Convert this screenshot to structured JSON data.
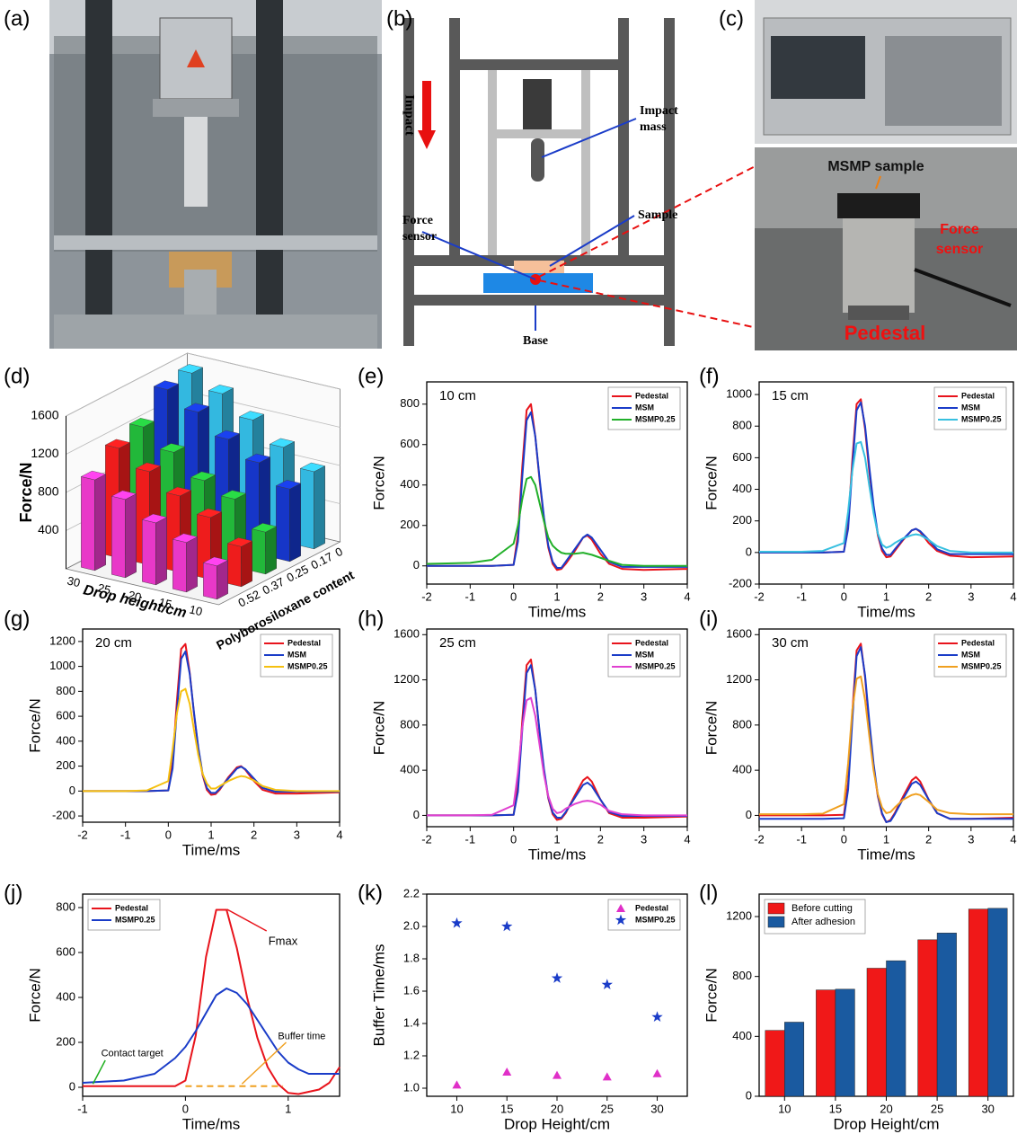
{
  "figure": {
    "panel_labels": [
      "(a)",
      "(b)",
      "(c)",
      "(d)",
      "(e)",
      "(f)",
      "(g)",
      "(h)",
      "(i)",
      "(j)",
      "(k)",
      "(l)"
    ],
    "schematic": {
      "impact": "Impact",
      "impact_mass": [
        "Impact",
        "mass"
      ],
      "force_sensor": [
        "Force",
        "sensor"
      ],
      "sample": "Sample",
      "base": "Base"
    },
    "photo": {
      "msmp_sample": "MSMP sample",
      "force_sensor": [
        "Force",
        "sensor"
      ],
      "pedestal": "Pedestal"
    }
  },
  "chart_data": [
    {
      "type": "bar3d",
      "z_label": "Force/N",
      "x_label": "Drop height/cm",
      "y_label": "Polyborosiloxane content",
      "categories": [
        "10",
        "15",
        "20",
        "25",
        "30"
      ],
      "depth_categories": [
        "0",
        "0.17",
        "0.25",
        "0.37",
        "0.52"
      ],
      "zlim": [
        0,
        1600
      ],
      "zticks": [
        400,
        800,
        1200,
        1600
      ],
      "series": [
        {
          "color": "#33b8e0",
          "values": [
            810,
            990,
            1200,
            1400,
            1540
          ]
        },
        {
          "color": "#1636c8",
          "values": [
            760,
            960,
            1130,
            1340,
            1500
          ]
        },
        {
          "color": "#22b83a",
          "values": [
            440,
            710,
            830,
            1050,
            1240
          ]
        },
        {
          "color": "#ee1c1c",
          "values": [
            420,
            650,
            800,
            980,
            1150
          ]
        },
        {
          "color": "#e838c8",
          "values": [
            350,
            520,
            650,
            820,
            950
          ]
        }
      ]
    },
    {
      "type": "line",
      "annotation": "10 cm",
      "x_label": "Time/ms",
      "y_label": "Force/N",
      "xlim": [
        -2,
        4
      ],
      "xticks": [
        -2,
        -1,
        0,
        1,
        2,
        3,
        4
      ],
      "ylim": [
        -90,
        910
      ],
      "yticks": [
        0,
        200,
        400,
        600,
        800
      ],
      "legend": "upper right",
      "x": [
        -2,
        -1,
        -0.5,
        0,
        0.1,
        0.2,
        0.3,
        0.4,
        0.5,
        0.6,
        0.7,
        0.8,
        0.9,
        1,
        1.1,
        1.2,
        1.4,
        1.6,
        1.7,
        1.8,
        2,
        2.2,
        2.5,
        3,
        4
      ],
      "series": [
        {
          "name": "Pedestal",
          "color": "#e8141c",
          "values": [
            0,
            0,
            0,
            5,
            155,
            490,
            770,
            800,
            640,
            420,
            230,
            90,
            10,
            -20,
            -15,
            10,
            70,
            140,
            150,
            130,
            60,
            10,
            -15,
            -20,
            -15
          ]
        },
        {
          "name": "MSM",
          "color": "#1a3cc8",
          "values": [
            0,
            0,
            0,
            5,
            120,
            440,
            720,
            760,
            640,
            430,
            240,
            100,
            20,
            -10,
            -10,
            20,
            80,
            140,
            155,
            140,
            80,
            20,
            -5,
            -5,
            -5
          ]
        },
        {
          "name": "MSMP0.25",
          "color": "#22b02a",
          "values": [
            10,
            15,
            30,
            110,
            200,
            330,
            430,
            440,
            400,
            310,
            220,
            140,
            100,
            80,
            65,
            60,
            60,
            65,
            60,
            55,
            40,
            25,
            5,
            0,
            0
          ]
        }
      ]
    },
    {
      "type": "line",
      "annotation": "15 cm",
      "x_label": "Time/ms",
      "y_label": "Force/N",
      "xlim": [
        -2,
        4
      ],
      "xticks": [
        -2,
        -1,
        0,
        1,
        2,
        3,
        4
      ],
      "ylim": [
        -200,
        1080
      ],
      "yticks": [
        -200,
        0,
        200,
        400,
        600,
        800,
        1000
      ],
      "legend": "upper right",
      "x": [
        -2,
        -1,
        -0.5,
        0,
        0.1,
        0.2,
        0.3,
        0.4,
        0.5,
        0.6,
        0.7,
        0.8,
        0.9,
        1,
        1.1,
        1.2,
        1.4,
        1.6,
        1.7,
        1.8,
        2,
        2.2,
        2.5,
        3,
        4
      ],
      "series": [
        {
          "name": "Pedestal",
          "color": "#e8141c",
          "values": [
            0,
            0,
            0,
            5,
            190,
            590,
            940,
            970,
            780,
            510,
            280,
            110,
            10,
            -30,
            -25,
            10,
            80,
            140,
            150,
            130,
            60,
            10,
            -20,
            -30,
            -25
          ]
        },
        {
          "name": "MSM",
          "color": "#1a3cc8",
          "values": [
            0,
            0,
            0,
            5,
            150,
            540,
            900,
            950,
            800,
            540,
            300,
            120,
            25,
            -15,
            -15,
            20,
            85,
            140,
            150,
            135,
            80,
            20,
            -10,
            -10,
            -10
          ]
        },
        {
          "name": "MSMP0.25",
          "color": "#38c0e0",
          "values": [
            5,
            5,
            10,
            60,
            260,
            520,
            690,
            700,
            600,
            420,
            250,
            120,
            50,
            30,
            40,
            60,
            90,
            110,
            115,
            110,
            80,
            40,
            10,
            0,
            0
          ]
        }
      ]
    },
    {
      "type": "line",
      "annotation": "20 cm",
      "x_label": "Time/ms",
      "y_label": "Force/N",
      "xlim": [
        -2,
        4
      ],
      "xticks": [
        -2,
        -1,
        0,
        1,
        2,
        3,
        4
      ],
      "ylim": [
        -250,
        1300
      ],
      "yticks": [
        -200,
        0,
        200,
        400,
        600,
        800,
        1000,
        1200
      ],
      "legend": "upper right",
      "x": [
        -2,
        -1,
        -0.5,
        0,
        0.1,
        0.2,
        0.3,
        0.4,
        0.5,
        0.6,
        0.7,
        0.8,
        0.9,
        1,
        1.1,
        1.2,
        1.4,
        1.6,
        1.7,
        1.8,
        2,
        2.2,
        2.5,
        3,
        4
      ],
      "series": [
        {
          "name": "Pedestal",
          "color": "#e8141c",
          "values": [
            0,
            0,
            0,
            5,
            230,
            720,
            1140,
            1180,
            950,
            620,
            340,
            130,
            10,
            -30,
            -25,
            10,
            110,
            190,
            200,
            170,
            80,
            10,
            -20,
            -20,
            -10
          ]
        },
        {
          "name": "MSM",
          "color": "#1a3cc8",
          "values": [
            0,
            0,
            0,
            5,
            180,
            640,
            1060,
            1120,
            940,
            630,
            350,
            140,
            25,
            -15,
            -15,
            20,
            100,
            180,
            195,
            175,
            100,
            25,
            -5,
            -5,
            -5
          ]
        },
        {
          "name": "MSMP0.25",
          "color": "#f5c010",
          "values": [
            0,
            0,
            5,
            80,
            330,
            620,
            800,
            820,
            700,
            490,
            290,
            140,
            60,
            20,
            20,
            40,
            80,
            110,
            120,
            115,
            85,
            40,
            10,
            0,
            0
          ]
        }
      ]
    },
    {
      "type": "line",
      "annotation": "25 cm",
      "x_label": "Time/ms",
      "y_label": "Force/N",
      "xlim": [
        -2,
        4
      ],
      "xticks": [
        -2,
        -1,
        0,
        1,
        2,
        3,
        4
      ],
      "ylim": [
        -100,
        1650
      ],
      "yticks": [
        0,
        400,
        800,
        1200,
        1600
      ],
      "legend": "upper right",
      "x": [
        -2,
        -1,
        -0.5,
        0,
        0.1,
        0.2,
        0.3,
        0.4,
        0.5,
        0.6,
        0.7,
        0.8,
        0.9,
        1,
        1.1,
        1.2,
        1.4,
        1.6,
        1.7,
        1.8,
        2,
        2.2,
        2.5,
        3,
        4
      ],
      "series": [
        {
          "name": "Pedestal",
          "color": "#e8141c",
          "values": [
            0,
            0,
            0,
            5,
            270,
            840,
            1330,
            1380,
            1110,
            720,
            390,
            150,
            10,
            -40,
            -30,
            20,
            170,
            310,
            340,
            300,
            140,
            20,
            -20,
            -20,
            -10
          ]
        },
        {
          "name": "MSM",
          "color": "#1a3cc8",
          "values": [
            0,
            0,
            0,
            5,
            210,
            760,
            1260,
            1330,
            1110,
            740,
            410,
            160,
            25,
            -20,
            -20,
            30,
            150,
            270,
            290,
            260,
            140,
            30,
            -5,
            -5,
            -5
          ]
        },
        {
          "name": "MSMP0.25",
          "color": "#e040d0",
          "values": [
            0,
            0,
            5,
            90,
            380,
            780,
            1020,
            1040,
            880,
            620,
            360,
            170,
            60,
            20,
            30,
            60,
            100,
            125,
            130,
            125,
            95,
            40,
            10,
            0,
            0
          ]
        }
      ]
    },
    {
      "type": "line",
      "annotation": "30 cm",
      "x_label": "Time/ms",
      "y_label": "Force/N",
      "xlim": [
        -2,
        4
      ],
      "xticks": [
        -2,
        -1,
        0,
        1,
        2,
        3,
        4
      ],
      "ylim": [
        -100,
        1650
      ],
      "yticks": [
        0,
        400,
        800,
        1200,
        1600
      ],
      "legend": "upper right",
      "x": [
        -2,
        -1,
        -0.5,
        0,
        0.1,
        0.2,
        0.3,
        0.4,
        0.5,
        0.6,
        0.7,
        0.8,
        0.9,
        1,
        1.1,
        1.2,
        1.4,
        1.6,
        1.7,
        1.8,
        2,
        2.2,
        2.5,
        3,
        4
      ],
      "series": [
        {
          "name": "Pedestal",
          "color": "#e8141c",
          "values": [
            0,
            0,
            0,
            5,
            290,
            920,
            1460,
            1520,
            1220,
            790,
            430,
            170,
            10,
            -60,
            -40,
            20,
            170,
            310,
            340,
            300,
            140,
            20,
            -30,
            -30,
            -20
          ]
        },
        {
          "name": "MSM",
          "color": "#1a3cc8",
          "values": [
            -30,
            -30,
            -30,
            -25,
            230,
            850,
            1410,
            1490,
            1240,
            830,
            460,
            180,
            20,
            -60,
            -50,
            10,
            150,
            280,
            300,
            270,
            140,
            20,
            -30,
            -30,
            -30
          ]
        },
        {
          "name": "MSMP0.25",
          "color": "#f0a020",
          "values": [
            10,
            10,
            15,
            100,
            460,
            940,
            1210,
            1230,
            1020,
            700,
            400,
            190,
            70,
            20,
            30,
            70,
            140,
            180,
            190,
            180,
            120,
            50,
            20,
            10,
            10
          ]
        }
      ]
    },
    {
      "type": "line",
      "x_label": "Time/ms",
      "y_label": "Force/N",
      "xlim": [
        -1,
        1.5
      ],
      "xticks": [
        -1,
        0,
        1
      ],
      "ylim": [
        -40,
        860
      ],
      "yticks": [
        0,
        200,
        400,
        600,
        800
      ],
      "legend": "upper left",
      "annotations": [
        "Fmax",
        "Contact target",
        "Buffer time"
      ],
      "x": [
        -1,
        -0.6,
        -0.3,
        -0.1,
        0,
        0.1,
        0.2,
        0.3,
        0.4,
        0.5,
        0.6,
        0.7,
        0.8,
        0.9,
        1,
        1.1,
        1.2,
        1.3,
        1.4,
        1.5
      ],
      "series": [
        {
          "name": "Pedestal",
          "color": "#e8141c",
          "values": [
            5,
            5,
            5,
            5,
            30,
            230,
            580,
            790,
            790,
            620,
            400,
            220,
            90,
            15,
            -25,
            -30,
            -20,
            -10,
            20,
            90
          ]
        },
        {
          "name": "MSMP0.25",
          "color": "#1a3cc8",
          "values": [
            20,
            30,
            60,
            130,
            180,
            250,
            330,
            410,
            440,
            420,
            370,
            300,
            230,
            160,
            110,
            80,
            60,
            60,
            60,
            60
          ]
        }
      ]
    },
    {
      "type": "scatter",
      "x_label": "Drop Height/cm",
      "y_label": "Buffer Time/ms",
      "xlim": [
        7,
        33
      ],
      "xticks": [
        10,
        15,
        20,
        25,
        30
      ],
      "ylim": [
        0.95,
        2.2
      ],
      "yticks": [
        {
          "value": 1.0,
          "label": "1.0"
        },
        1.2,
        1.4,
        1.6,
        1.8,
        {
          "value": 2.0,
          "label": "2.0"
        },
        2.2
      ],
      "legend": "upper right",
      "x": [
        10,
        15,
        20,
        25,
        30
      ],
      "series": [
        {
          "name": "Pedestal",
          "color": "#e030c8",
          "marker": "triangle",
          "values": [
            1.02,
            1.1,
            1.08,
            1.07,
            1.09
          ]
        },
        {
          "name": "MSMP0.25",
          "color": "#1a3cc8",
          "marker": "star",
          "values": [
            2.02,
            2.0,
            1.68,
            1.64,
            1.44
          ]
        }
      ]
    },
    {
      "type": "bar",
      "x_label": "Drop Height/cm",
      "y_label": "Force/N",
      "categories": [
        "10",
        "15",
        "20",
        "25",
        "30"
      ],
      "ylim": [
        0,
        1350
      ],
      "yticks": [
        0,
        400,
        800,
        1200
      ],
      "legend": "upper left",
      "series": [
        {
          "name": "Before cutting",
          "color": "#f01818",
          "values": [
            440,
            710,
            855,
            1045,
            1250
          ]
        },
        {
          "name": "After adhesion",
          "color": "#1a5aa0",
          "values": [
            495,
            715,
            905,
            1090,
            1255
          ]
        }
      ]
    }
  ]
}
